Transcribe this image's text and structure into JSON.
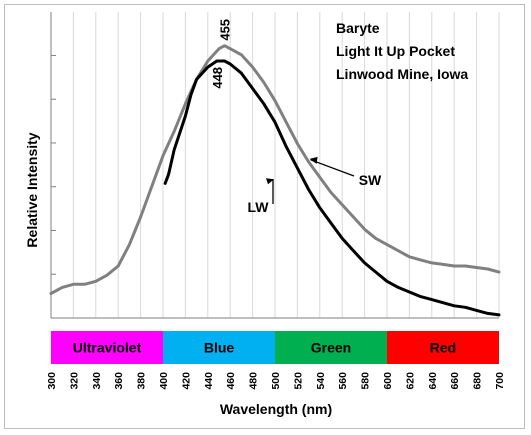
{
  "chart_data": {
    "type": "line",
    "title_lines": [
      "Baryte",
      "Light It Up Pocket",
      "Linwood Mine, Iowa"
    ],
    "xlabel": "Wavelength (nm)",
    "ylabel": "Relative Intensity",
    "xlim": [
      300,
      700
    ],
    "ylim": [
      0,
      100
    ],
    "grid": "vertical",
    "x_ticks": [
      300,
      320,
      340,
      360,
      380,
      400,
      420,
      440,
      460,
      480,
      500,
      520,
      540,
      560,
      580,
      600,
      620,
      640,
      660,
      680,
      700
    ],
    "series": [
      {
        "name": "SW",
        "color": "#808080",
        "x": [
          300,
          310,
          320,
          330,
          340,
          350,
          360,
          370,
          380,
          390,
          400,
          410,
          420,
          430,
          440,
          450,
          455,
          460,
          470,
          480,
          490,
          500,
          510,
          520,
          530,
          540,
          550,
          560,
          570,
          580,
          590,
          600,
          610,
          620,
          630,
          640,
          650,
          660,
          670,
          680,
          690,
          700
        ],
        "y": [
          8,
          10,
          11,
          11,
          12,
          14,
          17,
          24,
          33,
          43,
          53,
          61,
          70,
          78,
          84,
          88,
          89,
          88,
          86,
          82,
          77,
          71,
          64,
          57,
          51,
          46,
          41,
          37,
          33,
          29,
          26,
          24,
          22,
          20,
          19,
          18,
          17.5,
          17,
          17,
          16.5,
          16,
          15
        ]
      },
      {
        "name": "LW",
        "color": "#000000",
        "x": [
          402,
          405,
          410,
          420,
          425,
          430,
          440,
          448,
          455,
          460,
          470,
          480,
          490,
          500,
          510,
          520,
          530,
          540,
          550,
          560,
          570,
          580,
          590,
          600,
          610,
          620,
          630,
          640,
          650,
          660,
          670,
          680,
          690,
          700
        ],
        "y": [
          44,
          47,
          55,
          66,
          73,
          78,
          82,
          84,
          84,
          83,
          80,
          75,
          70,
          64,
          56,
          49,
          42,
          36,
          31,
          26,
          22,
          18,
          15,
          12,
          10,
          8.5,
          7,
          6,
          5,
          4,
          3.5,
          2.5,
          1.5,
          1
        ]
      }
    ],
    "annotations": [
      {
        "text": "455",
        "x": 455,
        "y": 89
      },
      {
        "text": "448",
        "x": 448,
        "y": 84
      },
      {
        "text": "SW",
        "x": 530,
        "y": 53
      },
      {
        "text": "LW",
        "x": 500,
        "y": 46
      }
    ],
    "color_bands": [
      {
        "label": "Ultraviolet",
        "from": 300,
        "to": 400,
        "color": "#ff00ff"
      },
      {
        "label": "Blue",
        "from": 400,
        "to": 500,
        "color": "#00b0f0"
      },
      {
        "label": "Green",
        "from": 500,
        "to": 600,
        "color": "#00b050"
      },
      {
        "label": "Red",
        "from": 600,
        "to": 700,
        "color": "#ff0000"
      }
    ]
  }
}
